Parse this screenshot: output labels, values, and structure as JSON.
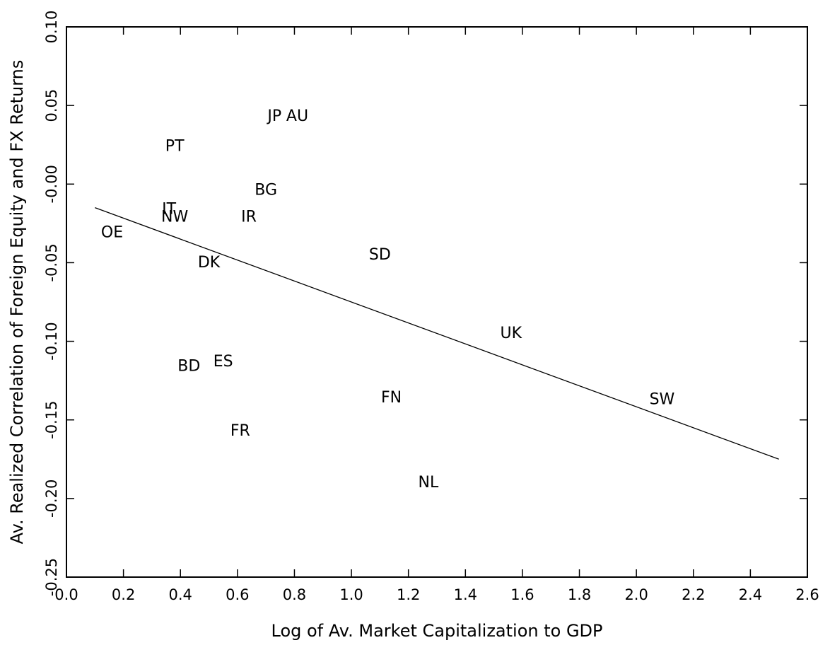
{
  "chart_data": {
    "type": "scatter",
    "title": "",
    "xlabel": "Log of Av. Market Capitalization to GDP",
    "ylabel": "Av. Realized Correlation of Foreign Equity and FX Returns",
    "xlim": [
      0.0,
      2.6
    ],
    "ylim": [
      -0.25,
      0.1
    ],
    "grid": false,
    "x_ticks": [
      0.0,
      0.2,
      0.4,
      0.6,
      0.8,
      1.0,
      1.2,
      1.4,
      1.6,
      1.8,
      2.0,
      2.2,
      2.4,
      2.6
    ],
    "x_tick_labels": [
      "0.0",
      "0.2",
      "0.4",
      "0.6",
      "0.8",
      "1.0",
      "1.2",
      "1.4",
      "1.6",
      "1.8",
      "2.0",
      "2.2",
      "2.4",
      "2.6"
    ],
    "y_ticks": [
      0.1,
      0.05,
      0.0,
      -0.05,
      -0.1,
      -0.15,
      -0.2,
      -0.25
    ],
    "y_tick_labels": [
      "0.10",
      "0.05",
      "-0.00",
      "-0.05",
      "-0.10",
      "-0.15",
      "-0.20",
      "-0.25"
    ],
    "points": [
      {
        "label": "JP",
        "x": 0.73,
        "y": 0.043
      },
      {
        "label": "AU",
        "x": 0.81,
        "y": 0.043
      },
      {
        "label": "PT",
        "x": 0.38,
        "y": 0.024
      },
      {
        "label": "BG",
        "x": 0.7,
        "y": -0.004
      },
      {
        "label": "IT",
        "x": 0.36,
        "y": -0.016
      },
      {
        "label": "NW",
        "x": 0.38,
        "y": -0.021
      },
      {
        "label": "IR",
        "x": 0.64,
        "y": -0.021
      },
      {
        "label": "OE",
        "x": 0.16,
        "y": -0.031
      },
      {
        "label": "SD",
        "x": 1.1,
        "y": -0.045
      },
      {
        "label": "DK",
        "x": 0.5,
        "y": -0.05
      },
      {
        "label": "UK",
        "x": 1.56,
        "y": -0.095
      },
      {
        "label": "ES",
        "x": 0.55,
        "y": -0.113
      },
      {
        "label": "BD",
        "x": 0.43,
        "y": -0.116
      },
      {
        "label": "FN",
        "x": 1.14,
        "y": -0.136
      },
      {
        "label": "SW",
        "x": 2.09,
        "y": -0.137
      },
      {
        "label": "FR",
        "x": 0.61,
        "y": -0.157
      },
      {
        "label": "NL",
        "x": 1.27,
        "y": -0.19
      }
    ],
    "fit_line": {
      "x": [
        0.1,
        2.5
      ],
      "y": [
        -0.015,
        -0.175
      ]
    }
  }
}
